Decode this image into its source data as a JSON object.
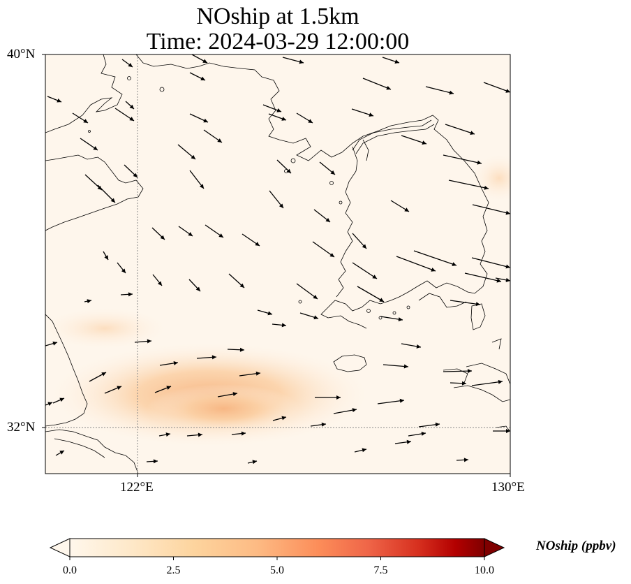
{
  "title": {
    "line1": "NOship at 1.5km",
    "line2": "Time: 2024-03-29 12:00:00"
  },
  "axes": {
    "lat_ticks": [
      "40°N",
      "32°N"
    ],
    "lon_ticks": [
      "122°E",
      "130°E"
    ],
    "extent": {
      "lon": [
        120,
        130
      ],
      "lat": [
        31,
        40
      ]
    }
  },
  "colorbar": {
    "label": "NOship (ppbv)",
    "min": 0.0,
    "max": 10.0,
    "ticks": [
      "0.0",
      "2.5",
      "5.0",
      "7.5",
      "10.0"
    ],
    "colormap": "OrRd",
    "extend": "both"
  },
  "colors": {
    "background": "#fef6ec",
    "plume_low": "#fde5c7",
    "plume_mid": "#fbd0a2",
    "plume_high": "#f8bc8a",
    "coast": "#000000",
    "gridline": "#888888"
  }
}
